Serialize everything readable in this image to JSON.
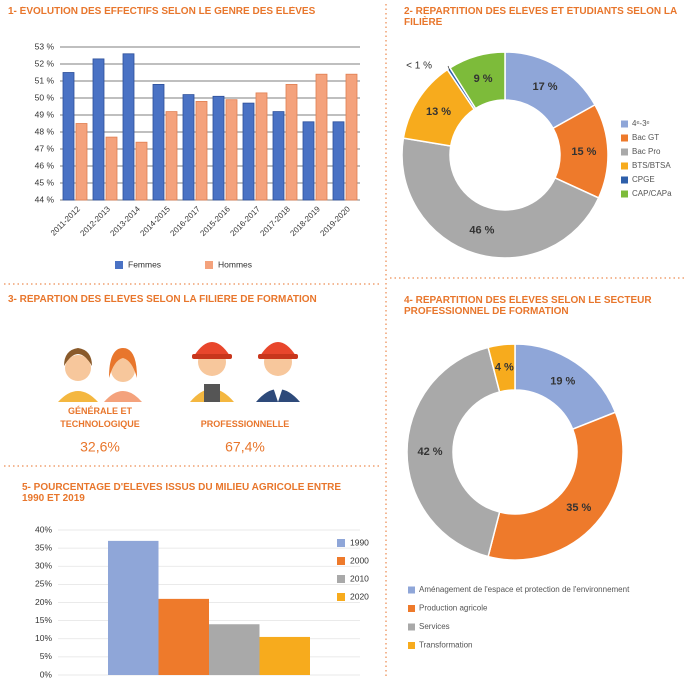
{
  "chart_data": [
    {
      "type": "bar",
      "title": "1- ÉVOLUTION DES EFFECTIFS SELON LE GENRE DES ÉLÈVES",
      "categories": [
        "2011-2012",
        "2012-2013",
        "2013-2014",
        "2014-2015",
        "2016-2017",
        "2015-2016",
        "2016-2017",
        "2017-2018",
        "2018-2019",
        "2019-2020"
      ],
      "series": [
        {
          "name": "Femmes",
          "color": "#4a72c4",
          "values": [
            51.5,
            52.3,
            52.6,
            50.8,
            50.2,
            50.1,
            49.7,
            49.2,
            48.6,
            48.6
          ]
        },
        {
          "name": "Hommes",
          "color": "#f4a27c",
          "values": [
            48.5,
            47.7,
            47.4,
            49.2,
            49.8,
            49.9,
            50.3,
            50.8,
            51.4,
            51.4
          ]
        }
      ],
      "ylim": [
        44,
        53
      ],
      "yticks": [
        {
          "value": 44,
          "label": "44 %"
        },
        {
          "value": 45,
          "label": "45 %"
        },
        {
          "value": 46,
          "label": "46 %"
        },
        {
          "value": 47,
          "label": "47 %"
        },
        {
          "value": 48,
          "label": "48 %"
        },
        {
          "value": 49,
          "label": "49 %"
        },
        {
          "value": 50,
          "label": "50 %"
        },
        {
          "value": 51,
          "label": "51 %"
        },
        {
          "value": 52,
          "label": "52 %"
        },
        {
          "value": 53,
          "label": "53 %"
        }
      ],
      "grid": true
    },
    {
      "type": "donut",
      "title": "2- RÉPARTITION DES ÉLÈVES ET ÉTUDIANTS SELON LA FILIÈRE",
      "categories": [
        "4ᵉ-3ᵉ",
        "Bac GT",
        "Bac Pro",
        "BTS/BTSA",
        "CPGE",
        "CAP/CAPa"
      ],
      "values": [
        17,
        15,
        46,
        13,
        0.5,
        9
      ],
      "value_labels": [
        "17 %",
        "15 %",
        "46 %",
        "13 %",
        "< 1 %",
        "9 %"
      ],
      "colors": [
        "#8fa6d8",
        "#ee7a2b",
        "#a9a9a9",
        "#f7ab1d",
        "#2e5faa",
        "#7dbb3a"
      ]
    },
    {
      "type": "stat",
      "title": "3- RÉPARTION DES ÉLÈVES SELON LA FILIÈRE DE FORMATION",
      "categories": [
        "GÉNÉRALE ET TECHNOLOGIQUE",
        "PROFESSIONNELLE"
      ],
      "values": [
        32.6,
        67.4
      ],
      "value_labels": [
        "32,6%",
        "67,4%"
      ]
    },
    {
      "type": "donut",
      "title": "4- RÉPARTITION DES ÉLÈVES SELON LE SECTEUR PROFESSIONNEL DE FORMATION",
      "categories": [
        "Aménagement de l'espace et protection de l'environnement",
        "Production agricole",
        "Services",
        "Transformation"
      ],
      "values": [
        19,
        35,
        42,
        4
      ],
      "value_labels": [
        "19 %",
        "35 %",
        "42 %",
        "4 %"
      ],
      "colors": [
        "#8fa6d8",
        "#ee7a2b",
        "#a9a9a9",
        "#f7ab1d"
      ]
    },
    {
      "type": "bar",
      "title": "5- POURCENTAGE D'ÉLÈVES ISSUS DU MILIEU AGRICOLE ENTRE 1990 ET 2019",
      "series": [
        {
          "name": "1990",
          "color": "#8fa6d8",
          "values": [
            37
          ]
        },
        {
          "name": "2000",
          "color": "#ee7a2b",
          "values": [
            21
          ]
        },
        {
          "name": "2010",
          "color": "#a9a9a9",
          "values": [
            14
          ]
        },
        {
          "name": "2020",
          "color": "#f7ab1d",
          "values": [
            10.5
          ]
        }
      ],
      "ylim": [
        0,
        40
      ],
      "yticks": [
        {
          "value": 0,
          "label": "0%"
        },
        {
          "value": 5,
          "label": "5%"
        },
        {
          "value": 10,
          "label": "10%"
        },
        {
          "value": 15,
          "label": "15%"
        },
        {
          "value": 20,
          "label": "20%"
        },
        {
          "value": 25,
          "label": "25%"
        },
        {
          "value": 30,
          "label": "30%"
        },
        {
          "value": 35,
          "label": "35%"
        },
        {
          "value": 40,
          "label": "40%"
        }
      ],
      "grid": true
    }
  ]
}
